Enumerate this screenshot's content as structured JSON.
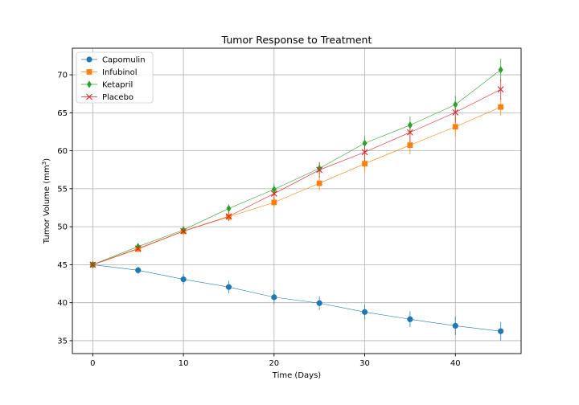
{
  "chart_data": {
    "type": "line",
    "title": "Tumor Response to Treatment",
    "xlabel": "Time (Days)",
    "ylabel": "Tumor Volume (mm",
    "ylabel_sup": "3",
    "ylabel_close": ")",
    "x": [
      0,
      5,
      10,
      15,
      20,
      25,
      30,
      35,
      40,
      45
    ],
    "xlim": [
      -2.25,
      47.25
    ],
    "ylim": [
      33.3,
      73.5
    ],
    "xticks": [
      0,
      10,
      20,
      30,
      40
    ],
    "yticks": [
      35,
      40,
      45,
      50,
      55,
      60,
      65,
      70
    ],
    "grid": true,
    "legend_position": "top-left",
    "series": [
      {
        "name": "Capomulin",
        "color": "#1f77b4",
        "marker": "circle",
        "values": [
          45.0,
          44.27,
          43.08,
          42.06,
          40.72,
          39.94,
          38.77,
          37.82,
          36.96,
          36.24
        ],
        "errors": [
          0.0,
          0.45,
          0.7,
          0.84,
          0.91,
          0.9,
          0.93,
          1.05,
          1.22,
          1.22
        ]
      },
      {
        "name": "Infubinol",
        "color": "#ff7f0e",
        "marker": "square",
        "values": [
          45.0,
          47.06,
          49.4,
          51.3,
          53.2,
          55.72,
          58.3,
          60.74,
          63.16,
          65.76
        ],
        "errors": [
          0.0,
          0.24,
          0.48,
          0.55,
          0.63,
          0.98,
          1.06,
          1.22,
          1.28,
          1.16
        ]
      },
      {
        "name": "Ketapril",
        "color": "#2ca02c",
        "marker": "diamond",
        "values": [
          45.0,
          47.39,
          49.58,
          52.4,
          54.92,
          57.68,
          60.99,
          63.37,
          66.07,
          70.66
        ],
        "errors": [
          0.0,
          0.26,
          0.36,
          0.58,
          0.73,
          0.76,
          0.93,
          1.13,
          1.16,
          1.45
        ]
      },
      {
        "name": "Placebo",
        "color": "#d62728",
        "marker": "x",
        "values": [
          45.0,
          47.13,
          49.42,
          51.36,
          54.36,
          57.48,
          59.81,
          62.42,
          65.05,
          68.08
        ],
        "errors": [
          0.0,
          0.22,
          0.4,
          0.61,
          0.84,
          1.03,
          1.22,
          1.29,
          1.37,
          1.35
        ]
      }
    ]
  }
}
